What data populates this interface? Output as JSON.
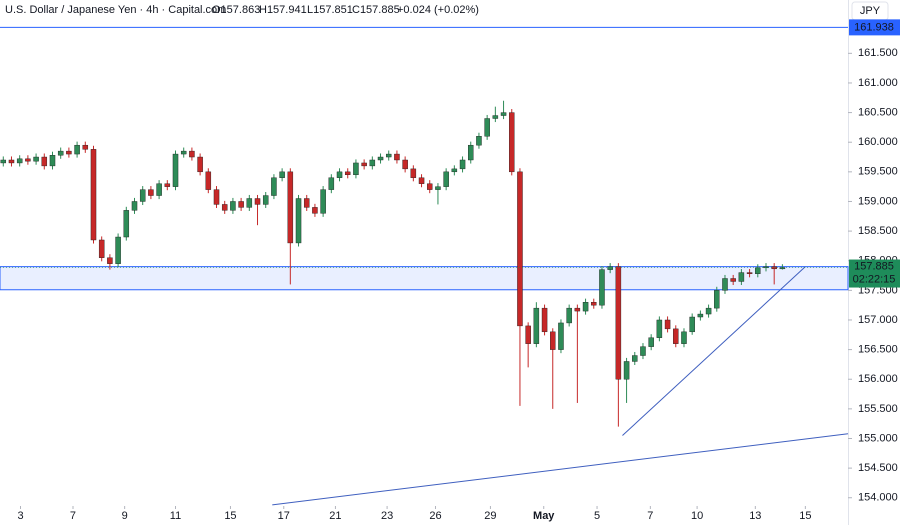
{
  "chart_data": {
    "type": "candlestick",
    "header": {
      "symbol": "U.S. Dollar / Japanese Yen · 4h · Capital.com",
      "open": "O157.863",
      "high": "H157.941",
      "low": "L157.851",
      "close": "C157.885",
      "change": "+0.024 (+0.02%)"
    },
    "currency": "JPY",
    "up_color": "#2e8b57",
    "down_color": "#c62828",
    "open": [
      159.65,
      159.7,
      159.65,
      159.72,
      159.68,
      159.75,
      159.6,
      159.78,
      159.85,
      159.8,
      159.95,
      159.88,
      158.35,
      158.05,
      157.95,
      158.4,
      158.85,
      159.0,
      159.2,
      159.1,
      159.3,
      159.25,
      159.8,
      159.85,
      159.75,
      159.5,
      159.2,
      158.95,
      158.85,
      159.0,
      158.9,
      159.05,
      158.95,
      159.1,
      159.4,
      159.5,
      158.3,
      159.05,
      158.9,
      158.8,
      159.2,
      159.4,
      159.5,
      159.45,
      159.65,
      159.6,
      159.7,
      159.75,
      159.8,
      159.7,
      159.55,
      159.4,
      159.3,
      159.2,
      159.25,
      159.5,
      159.55,
      159.7,
      159.95,
      160.1,
      160.4,
      160.45,
      160.5,
      159.5,
      156.9,
      156.6,
      157.2,
      156.8,
      156.5,
      156.95,
      157.2,
      157.15,
      157.3,
      157.25,
      157.85,
      157.9,
      156.0,
      156.3,
      156.4,
      156.55,
      156.7,
      157.0,
      156.85,
      156.6,
      156.8,
      157.05,
      157.1,
      157.2,
      157.5,
      157.7,
      157.65,
      157.8,
      157.78,
      157.88,
      157.9,
      157.863
    ],
    "high": [
      159.76,
      159.76,
      159.78,
      159.78,
      159.81,
      159.81,
      159.84,
      159.91,
      159.91,
      160.01,
      160.01,
      159.94,
      158.41,
      158.11,
      158.46,
      158.91,
      159.06,
      159.26,
      159.26,
      159.36,
      159.36,
      159.86,
      159.91,
      159.91,
      159.81,
      159.56,
      159.26,
      159.01,
      159.06,
      159.06,
      159.11,
      159.11,
      159.16,
      159.46,
      159.56,
      159.56,
      159.11,
      159.11,
      158.96,
      159.26,
      159.46,
      159.56,
      159.56,
      159.71,
      159.71,
      159.76,
      159.81,
      159.86,
      159.86,
      159.76,
      159.61,
      159.46,
      159.36,
      159.31,
      159.56,
      159.61,
      159.76,
      160.01,
      160.16,
      160.46,
      160.6,
      160.7,
      160.56,
      159.56,
      156.96,
      157.3,
      157.26,
      156.86,
      157.01,
      157.26,
      157.26,
      157.36,
      157.36,
      157.91,
      157.96,
      157.96,
      156.36,
      156.46,
      156.61,
      156.76,
      157.06,
      157.06,
      156.91,
      156.86,
      157.11,
      157.16,
      157.26,
      157.56,
      157.76,
      157.76,
      157.86,
      157.86,
      157.94,
      157.96,
      157.96,
      157.941
    ],
    "low": [
      159.59,
      159.59,
      159.59,
      159.62,
      159.62,
      159.54,
      159.54,
      159.72,
      159.74,
      159.74,
      159.82,
      158.29,
      157.99,
      157.85,
      157.89,
      158.34,
      158.79,
      158.94,
      159.04,
      159.04,
      159.19,
      159.19,
      159.74,
      159.69,
      159.44,
      159.14,
      158.89,
      158.79,
      158.79,
      158.84,
      158.84,
      158.6,
      158.89,
      159.04,
      159.34,
      157.6,
      158.24,
      158.84,
      158.74,
      158.74,
      159.14,
      159.34,
      159.39,
      159.39,
      159.54,
      159.54,
      159.64,
      159.69,
      159.64,
      159.49,
      159.34,
      159.24,
      159.14,
      158.95,
      159.19,
      159.44,
      159.49,
      159.64,
      159.89,
      160.04,
      160.34,
      160.39,
      159.44,
      155.55,
      156.2,
      156.54,
      156.74,
      155.5,
      156.44,
      156.89,
      155.6,
      157.09,
      157.19,
      157.19,
      157.79,
      155.2,
      155.6,
      156.24,
      156.34,
      156.49,
      156.64,
      156.79,
      156.54,
      156.54,
      156.75,
      156.99,
      157.04,
      157.14,
      157.44,
      157.59,
      157.59,
      157.72,
      157.72,
      157.82,
      157.6,
      157.851
    ],
    "close": [
      159.7,
      159.65,
      159.72,
      159.68,
      159.75,
      159.6,
      159.78,
      159.85,
      159.8,
      159.95,
      159.88,
      158.35,
      158.05,
      157.95,
      158.4,
      158.85,
      159.0,
      159.2,
      159.1,
      159.3,
      159.25,
      159.8,
      159.85,
      159.75,
      159.5,
      159.2,
      158.95,
      158.85,
      159.0,
      158.9,
      159.05,
      158.95,
      159.1,
      159.4,
      159.5,
      158.3,
      159.05,
      158.9,
      158.8,
      159.2,
      159.4,
      159.5,
      159.45,
      159.65,
      159.6,
      159.7,
      159.75,
      159.8,
      159.7,
      159.55,
      159.4,
      159.3,
      159.2,
      159.25,
      159.5,
      159.55,
      159.7,
      159.95,
      160.1,
      160.4,
      160.45,
      160.5,
      159.5,
      156.9,
      156.6,
      157.2,
      156.8,
      156.5,
      156.95,
      157.2,
      157.15,
      157.3,
      157.25,
      157.85,
      157.9,
      156.0,
      156.3,
      156.4,
      156.55,
      156.7,
      157.0,
      156.85,
      156.6,
      156.8,
      157.05,
      157.1,
      157.2,
      157.5,
      157.7,
      157.65,
      157.8,
      157.78,
      157.88,
      157.9,
      157.863,
      157.885
    ],
    "xlim": [
      -0.4,
      103
    ],
    "ylim": [
      153.54,
      162.4
    ],
    "yticks": [
      {
        "value": 154,
        "label": "154.000"
      },
      {
        "value": 154.5,
        "label": "154.500"
      },
      {
        "value": 155,
        "label": "155.000"
      },
      {
        "value": 155.5,
        "label": "155.500"
      },
      {
        "value": 156,
        "label": "156.000"
      },
      {
        "value": 156.5,
        "label": "156.500"
      },
      {
        "value": 157,
        "label": "157.000"
      },
      {
        "value": 157.5,
        "label": "157.500"
      },
      {
        "value": 158,
        "label": "158.000"
      },
      {
        "value": 158.5,
        "label": "158.500"
      },
      {
        "value": 159,
        "label": "159.000"
      },
      {
        "value": 159.5,
        "label": "159.500"
      },
      {
        "value": 160,
        "label": "160.000"
      },
      {
        "value": 160.5,
        "label": "160.500"
      },
      {
        "value": 161,
        "label": "161.000"
      },
      {
        "value": 161.5,
        "label": "161.500"
      }
    ],
    "xticks": [
      {
        "value": 2.1,
        "label": "3"
      },
      {
        "value": 8.5,
        "label": "7"
      },
      {
        "value": 14.8,
        "label": "9"
      },
      {
        "value": 21,
        "label": "11"
      },
      {
        "value": 27.7,
        "label": "15"
      },
      {
        "value": 34.2,
        "label": "17"
      },
      {
        "value": 40.5,
        "label": "21"
      },
      {
        "value": 46.8,
        "label": "23"
      },
      {
        "value": 52.7,
        "label": "26"
      },
      {
        "value": 59.4,
        "label": "29"
      },
      {
        "value": 65.9,
        "label": "May"
      },
      {
        "value": 72.4,
        "label": "5"
      },
      {
        "value": 78.9,
        "label": "7"
      },
      {
        "value": 84.6,
        "label": "10"
      },
      {
        "value": 91.7,
        "label": "13"
      },
      {
        "value": 97.8,
        "label": "15"
      }
    ],
    "hline": {
      "value": 161.938,
      "color": "#2962ff"
    },
    "zone": {
      "from": 157.51,
      "to": 157.9,
      "color": "#2962ff"
    },
    "trendlines": [
      {
        "x": [
          75.5,
          97.8
        ],
        "y": [
          155.05,
          157.9
        ]
      },
      {
        "x": [
          32.8,
          103
        ],
        "y": [
          153.88,
          155.08
        ]
      }
    ],
    "last_price": {
      "value": 157.885,
      "countdown": "02:22:15",
      "color": "#1e8c5a"
    },
    "grid": false
  }
}
